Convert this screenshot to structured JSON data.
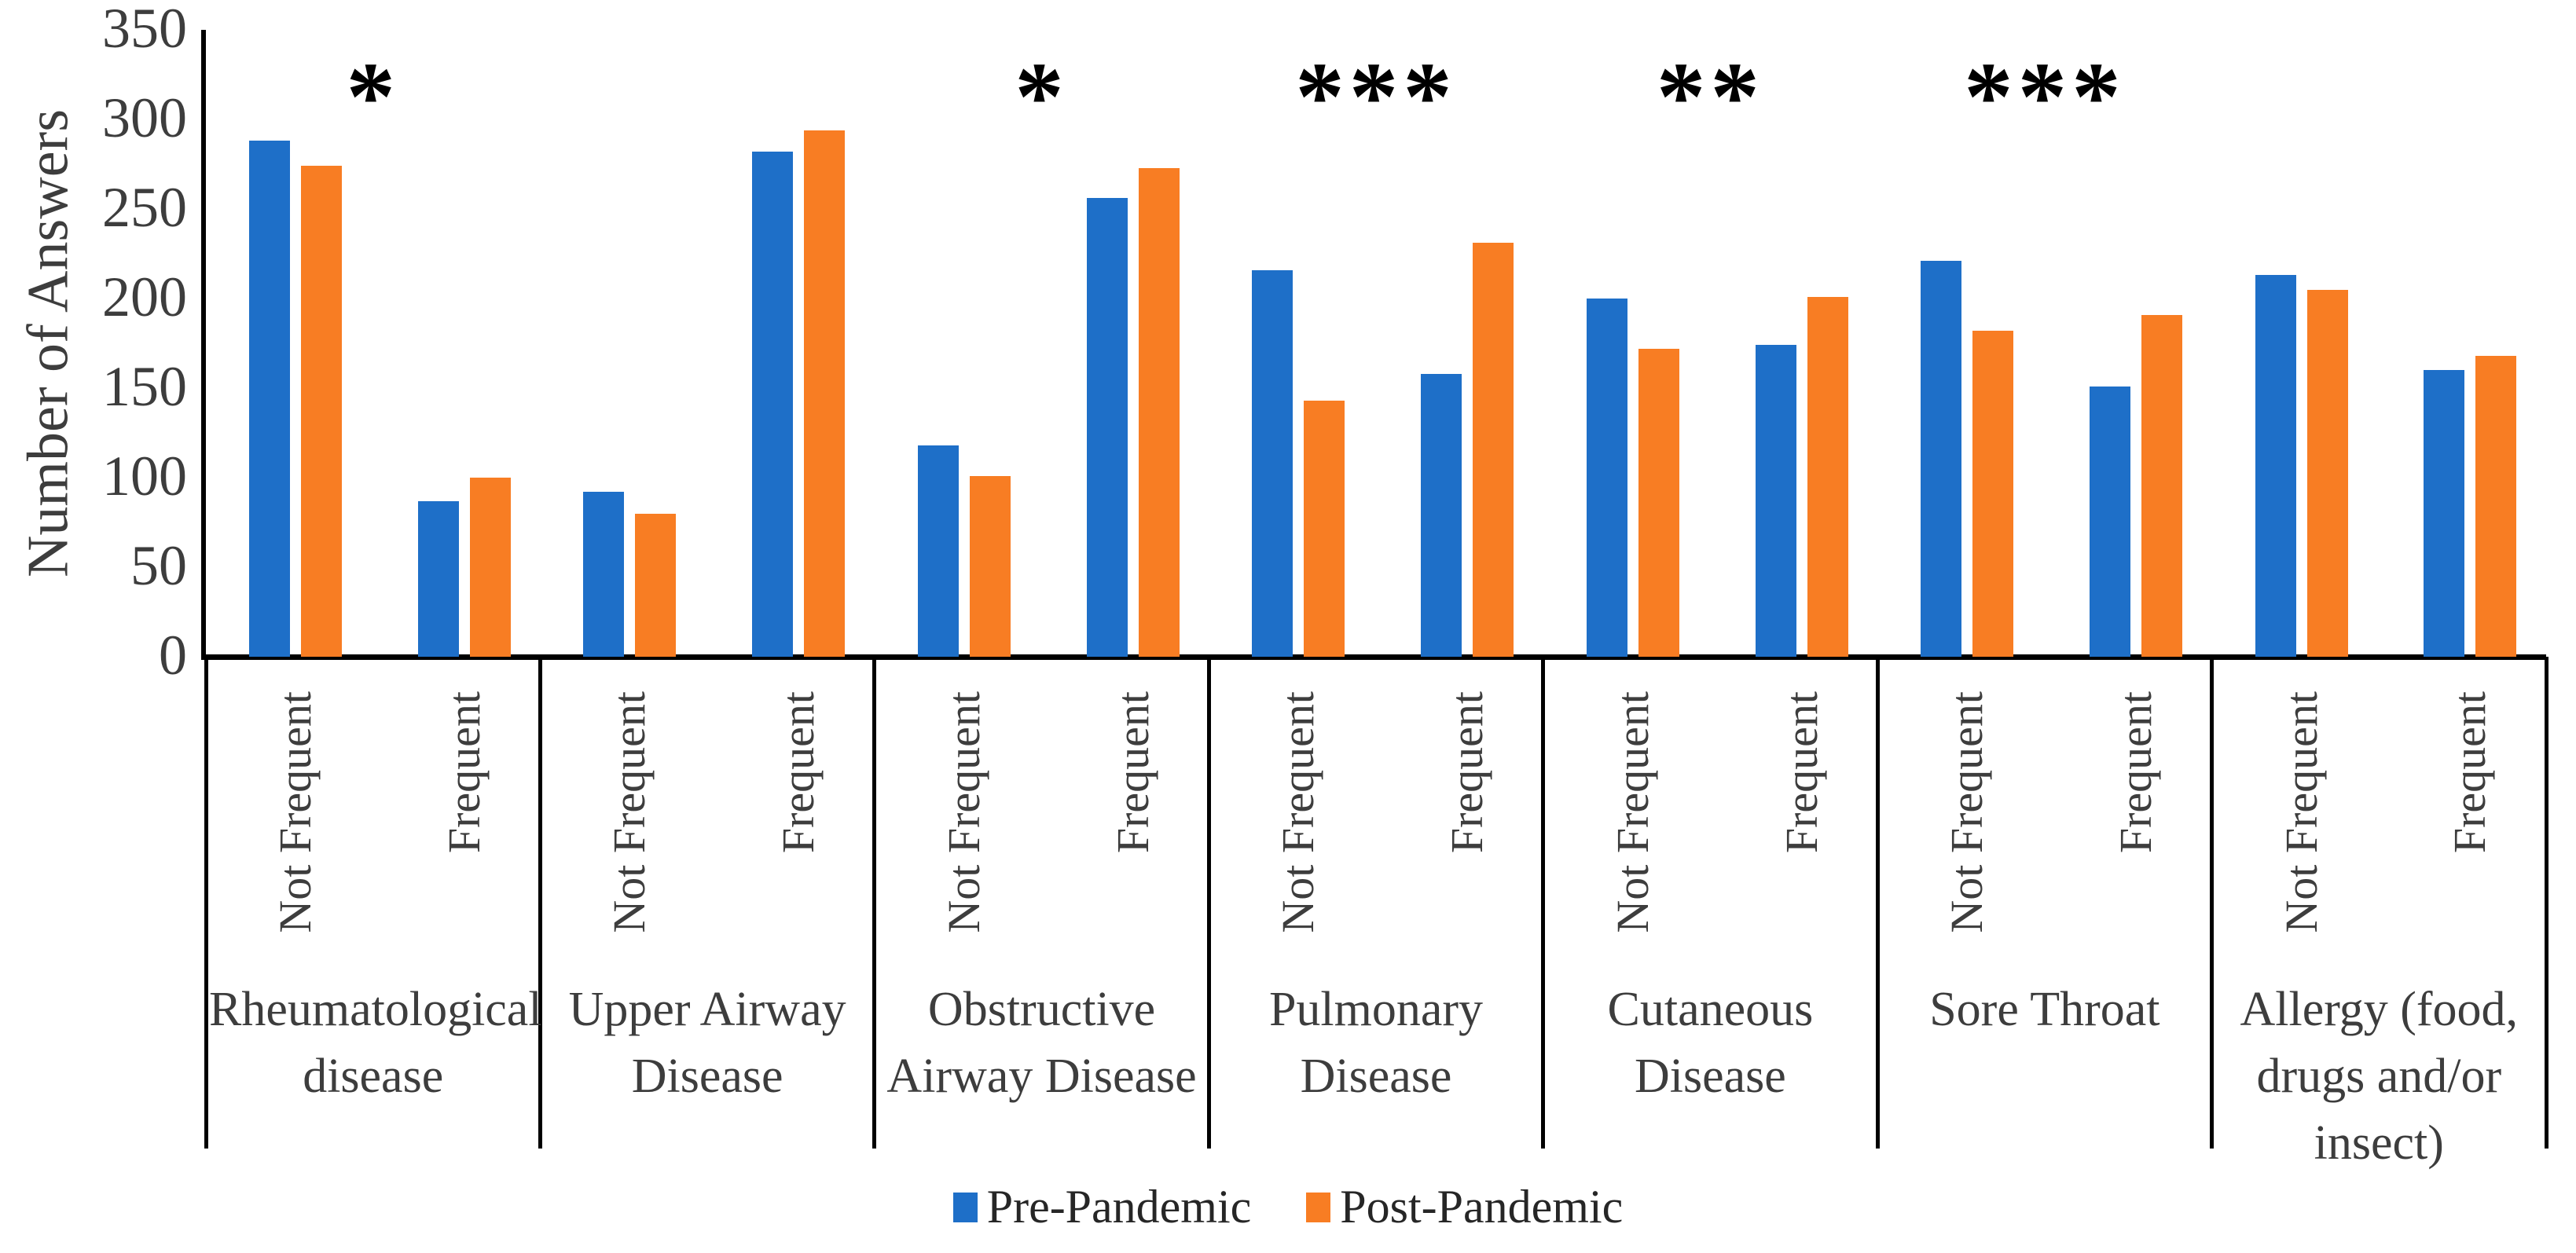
{
  "chart_data": {
    "type": "bar",
    "title": "",
    "ylabel": "Number of Answers",
    "ylim": [
      0,
      350
    ],
    "yticks": [
      0,
      50,
      100,
      150,
      200,
      250,
      300,
      350
    ],
    "grid": false,
    "legend_position": "bottom-center",
    "subcategories": [
      "Not Frequent",
      "Frequent"
    ],
    "series": [
      {
        "name": "Pre-Pandemic",
        "color": "#1E6FC8"
      },
      {
        "name": "Post-Pandemic",
        "color": "#F87D23"
      }
    ],
    "groups": [
      {
        "label": "Rheumatological disease",
        "label_lines": [
          "Rheumatological",
          "disease"
        ],
        "significance": "*",
        "values": [
          [
            288,
            274
          ],
          [
            87,
            100
          ]
        ]
      },
      {
        "label": "Upper Airway Disease",
        "label_lines": [
          "Upper Airway",
          "Disease"
        ],
        "significance": "",
        "values": [
          [
            92,
            80
          ],
          [
            282,
            294
          ]
        ]
      },
      {
        "label": "Obstructive Airway Disease",
        "label_lines": [
          "Obstructive",
          "Airway Disease"
        ],
        "significance": "*",
        "values": [
          [
            118,
            101
          ],
          [
            256,
            273
          ]
        ]
      },
      {
        "label": "Pulmonary Disease",
        "label_lines": [
          "Pulmonary",
          "Disease"
        ],
        "significance": "***",
        "values": [
          [
            216,
            143
          ],
          [
            158,
            231
          ]
        ]
      },
      {
        "label": "Cutaneous Disease",
        "label_lines": [
          "Cutaneous",
          "Disease"
        ],
        "significance": "**",
        "values": [
          [
            200,
            172
          ],
          [
            174,
            201
          ]
        ]
      },
      {
        "label": "Sore Throat",
        "label_lines": [
          "Sore Throat"
        ],
        "significance": "***",
        "values": [
          [
            221,
            182
          ],
          [
            151,
            191
          ]
        ]
      },
      {
        "label": "Allergy (food, drugs and/or insect)",
        "label_lines": [
          "Allergy (food,",
          "drugs and/or",
          "insect)"
        ],
        "significance": "",
        "values": [
          [
            213,
            205
          ],
          [
            160,
            168
          ]
        ]
      }
    ]
  }
}
